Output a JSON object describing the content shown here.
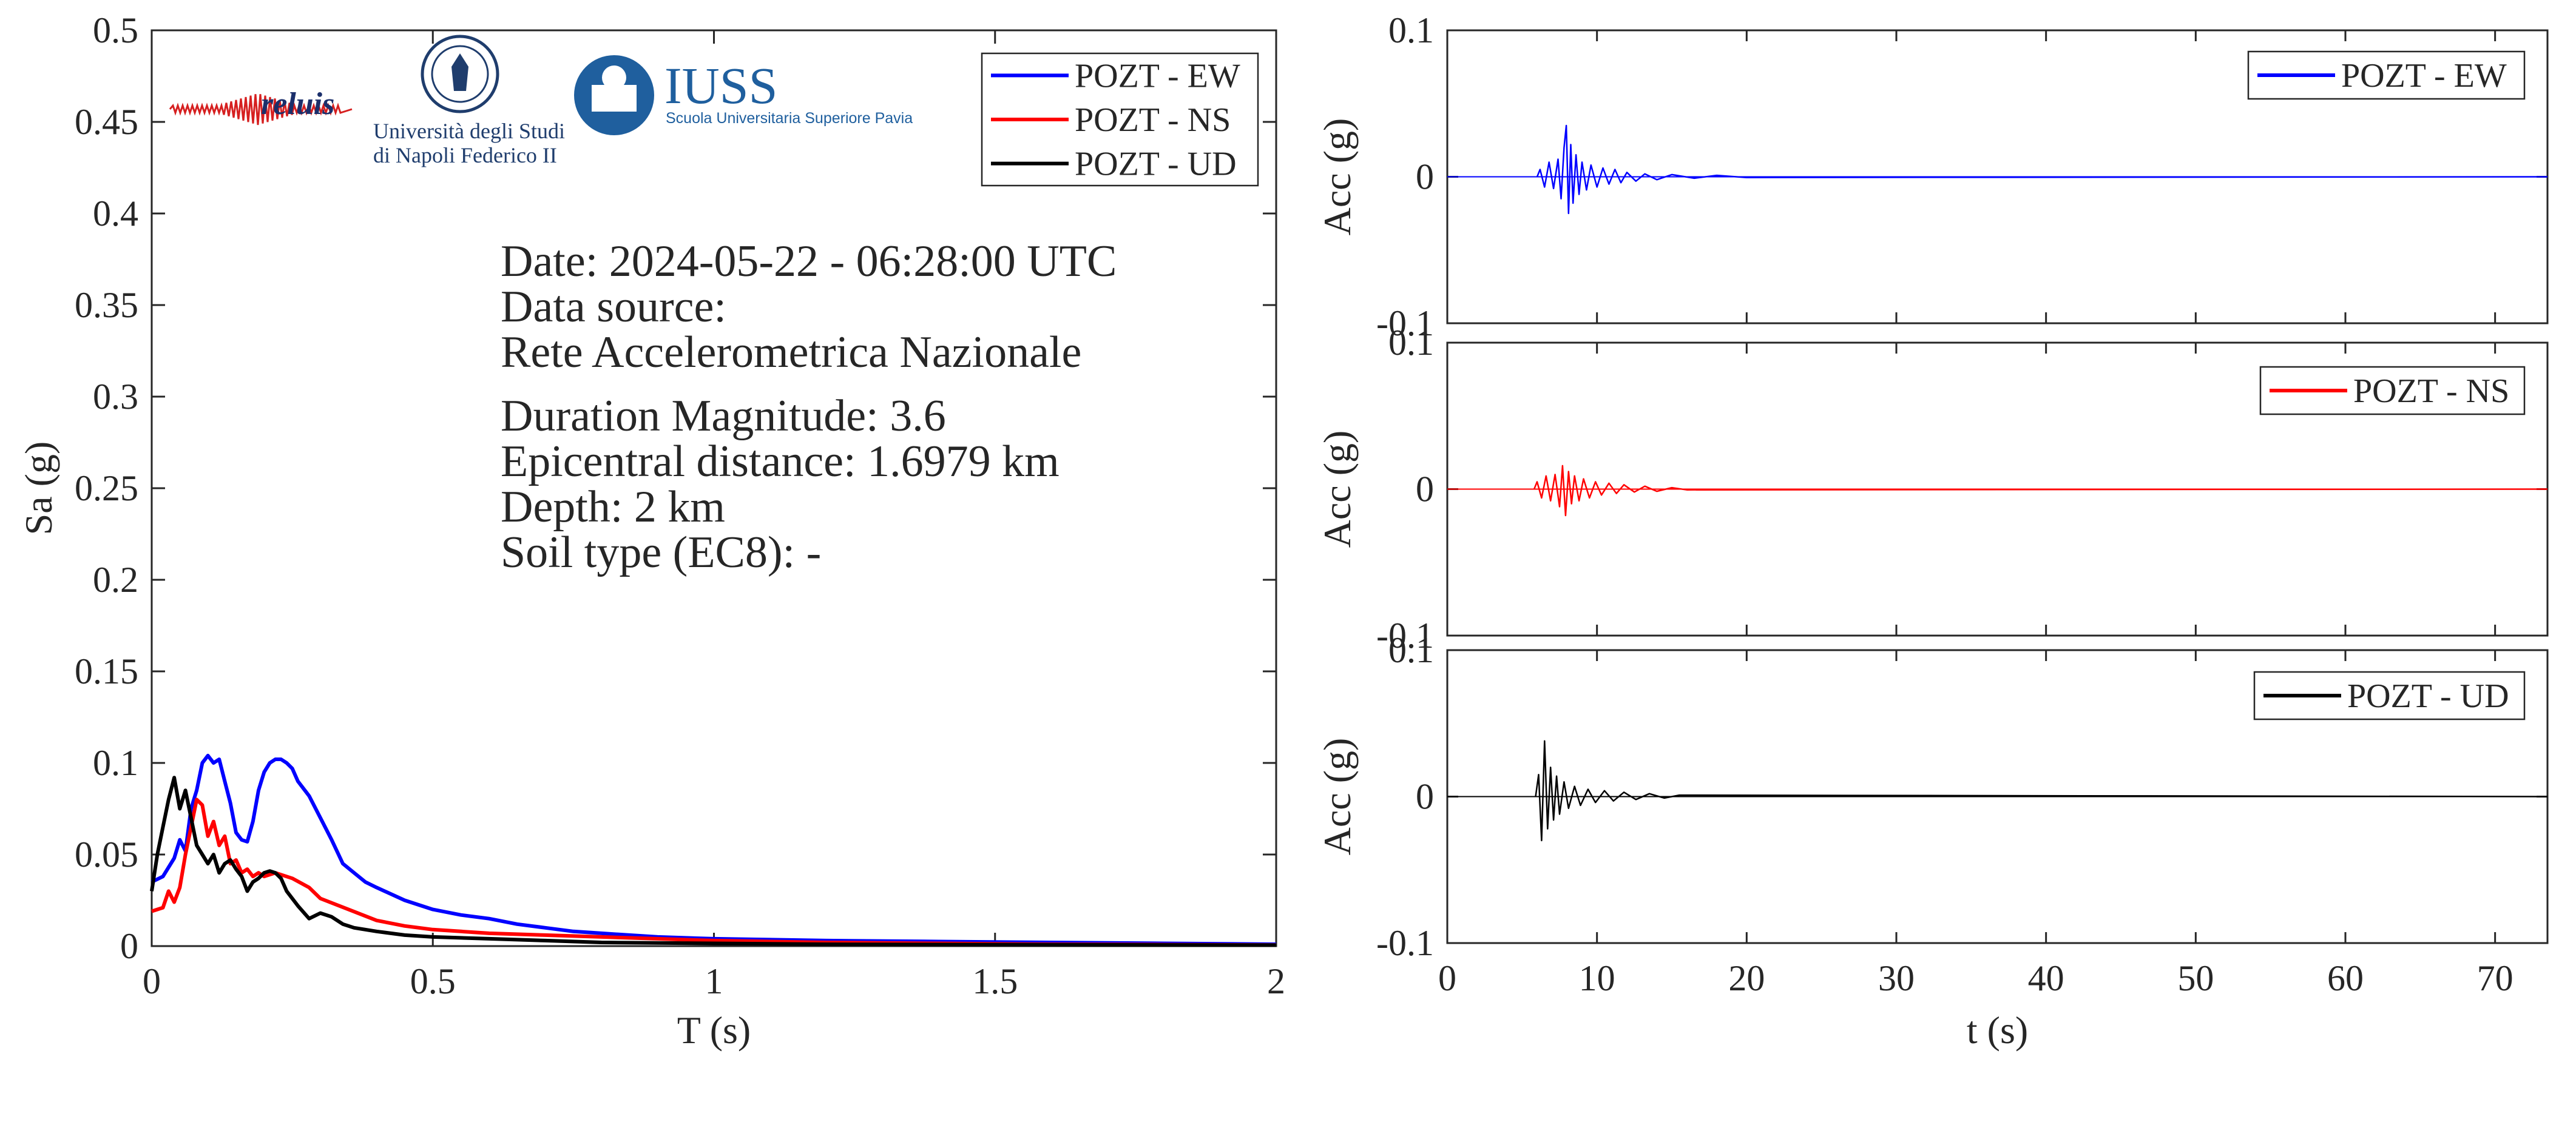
{
  "logos": [
    {
      "name": "reluis-logo",
      "text": "reluis"
    },
    {
      "name": "unina-logo",
      "lines": [
        "Università degli Studi",
        "di Napoli Federico II"
      ]
    },
    {
      "name": "iuss-logo",
      "lines": [
        "IUSS",
        "Scuola Universitaria Superiore Pavia"
      ]
    }
  ],
  "info": {
    "lines": [
      "Date: 2024-05-22 - 06:28:00 UTC",
      "Data source:",
      "Rete Accelerometrica Nazionale",
      "Duration Magnitude: 3.6",
      "Epicentral distance: 1.6979 km",
      "Depth: 2 km",
      "Soil type (EC8): -"
    ]
  },
  "colors": {
    "ew": "#0000ff",
    "ns": "#ff0000",
    "ud": "#000000",
    "axis": "#262626"
  },
  "chart_data": [
    {
      "type": "line",
      "id": "spectrum",
      "xlabel": "T (s)",
      "ylabel": "Sa (g)",
      "xlim": [
        0,
        2
      ],
      "ylim": [
        0,
        0.5
      ],
      "xticks": [
        "0",
        "0.5",
        "1",
        "1.5",
        "2"
      ],
      "yticks": [
        "0",
        "0.05",
        "0.1",
        "0.15",
        "0.2",
        "0.25",
        "0.3",
        "0.35",
        "0.4",
        "0.45",
        "0.5"
      ],
      "grid": false,
      "legend": "top-right",
      "series": [
        {
          "name": "POZT - EW",
          "color": "#0000ff",
          "x": [
            0,
            0.02,
            0.04,
            0.05,
            0.06,
            0.07,
            0.08,
            0.09,
            0.1,
            0.11,
            0.12,
            0.13,
            0.14,
            0.15,
            0.16,
            0.17,
            0.18,
            0.19,
            0.2,
            0.21,
            0.22,
            0.23,
            0.24,
            0.25,
            0.26,
            0.28,
            0.3,
            0.32,
            0.34,
            0.36,
            0.38,
            0.4,
            0.45,
            0.5,
            0.55,
            0.6,
            0.65,
            0.7,
            0.75,
            0.8,
            0.9,
            1.0,
            1.2,
            1.4,
            1.6,
            1.8,
            2.0
          ],
          "values": [
            0.035,
            0.038,
            0.048,
            0.058,
            0.052,
            0.075,
            0.085,
            0.1,
            0.104,
            0.1,
            0.102,
            0.09,
            0.078,
            0.062,
            0.058,
            0.057,
            0.068,
            0.085,
            0.095,
            0.1,
            0.102,
            0.102,
            0.1,
            0.097,
            0.09,
            0.082,
            0.07,
            0.058,
            0.045,
            0.04,
            0.035,
            0.032,
            0.025,
            0.02,
            0.017,
            0.015,
            0.012,
            0.01,
            0.008,
            0.007,
            0.005,
            0.004,
            0.003,
            0.0025,
            0.002,
            0.0015,
            0.001
          ]
        },
        {
          "name": "POZT - NS",
          "color": "#ff0000",
          "x": [
            0,
            0.02,
            0.03,
            0.04,
            0.05,
            0.06,
            0.07,
            0.08,
            0.09,
            0.1,
            0.11,
            0.12,
            0.13,
            0.14,
            0.15,
            0.16,
            0.17,
            0.18,
            0.19,
            0.2,
            0.22,
            0.25,
            0.28,
            0.3,
            0.35,
            0.4,
            0.45,
            0.5,
            0.55,
            0.6,
            0.7,
            0.8,
            0.9,
            1.0,
            1.2,
            1.4,
            1.6,
            1.8,
            2.0
          ],
          "values": [
            0.019,
            0.021,
            0.03,
            0.024,
            0.032,
            0.05,
            0.065,
            0.08,
            0.077,
            0.06,
            0.068,
            0.055,
            0.06,
            0.045,
            0.047,
            0.04,
            0.042,
            0.038,
            0.04,
            0.038,
            0.04,
            0.037,
            0.032,
            0.026,
            0.02,
            0.014,
            0.011,
            0.009,
            0.008,
            0.007,
            0.006,
            0.005,
            0.004,
            0.003,
            0.002,
            0.0015,
            0.001,
            0.0008,
            0.0006
          ]
        },
        {
          "name": "POZT - UD",
          "color": "#000000",
          "x": [
            0,
            0.01,
            0.02,
            0.03,
            0.04,
            0.05,
            0.06,
            0.07,
            0.08,
            0.09,
            0.1,
            0.11,
            0.12,
            0.13,
            0.14,
            0.15,
            0.16,
            0.17,
            0.18,
            0.19,
            0.2,
            0.21,
            0.22,
            0.23,
            0.24,
            0.26,
            0.28,
            0.3,
            0.32,
            0.34,
            0.36,
            0.38,
            0.4,
            0.45,
            0.5,
            0.6,
            0.7,
            0.8,
            1.0,
            1.2,
            1.5,
            2.0
          ],
          "values": [
            0.03,
            0.05,
            0.065,
            0.08,
            0.092,
            0.075,
            0.085,
            0.07,
            0.055,
            0.05,
            0.045,
            0.05,
            0.04,
            0.045,
            0.047,
            0.042,
            0.038,
            0.03,
            0.035,
            0.037,
            0.04,
            0.041,
            0.04,
            0.037,
            0.03,
            0.022,
            0.015,
            0.018,
            0.016,
            0.012,
            0.01,
            0.009,
            0.008,
            0.006,
            0.005,
            0.004,
            0.003,
            0.002,
            0.0015,
            0.001,
            0.0008,
            0.0005
          ]
        }
      ]
    },
    {
      "type": "line",
      "id": "acc-ew",
      "xlabel": "",
      "ylabel": "Acc (g)",
      "xlim": [
        0,
        73.5
      ],
      "ylim": [
        -0.1,
        0.1
      ],
      "xticks": [],
      "yticks": [
        "-0.1",
        "0",
        "0.1"
      ],
      "grid": false,
      "legend": "top-right",
      "series": [
        {
          "name": "POZT - EW",
          "color": "#0000ff",
          "x": [
            6.2,
            6.5,
            6.8,
            7.1,
            7.4,
            7.6,
            7.8,
            7.95,
            8.1,
            8.25,
            8.4,
            8.6,
            8.8,
            9.0,
            9.3,
            9.6,
            10.0,
            10.4,
            10.8,
            11.2,
            11.6,
            12.0,
            12.6,
            13.2,
            14.0,
            15.0,
            16.5,
            18.0,
            20.0
          ],
          "values": [
            0.005,
            -0.007,
            0.01,
            -0.008,
            0.012,
            -0.015,
            0.02,
            0.035,
            -0.025,
            0.022,
            -0.018,
            0.015,
            -0.012,
            0.01,
            -0.009,
            0.008,
            -0.007,
            0.006,
            -0.005,
            0.005,
            -0.004,
            0.003,
            -0.003,
            0.002,
            -0.002,
            0.0015,
            -0.001,
            0.001,
            -0.0005
          ]
        }
      ]
    },
    {
      "type": "line",
      "id": "acc-ns",
      "xlabel": "",
      "ylabel": "Acc (g)",
      "xlim": [
        0,
        73.5
      ],
      "ylim": [
        -0.1,
        0.1
      ],
      "xticks": [],
      "yticks": [
        "-0.1",
        "0",
        "0.1"
      ],
      "grid": false,
      "legend": "top-right",
      "series": [
        {
          "name": "POZT - NS",
          "color": "#ff0000",
          "x": [
            6.0,
            6.3,
            6.6,
            6.9,
            7.2,
            7.5,
            7.7,
            7.9,
            8.1,
            8.3,
            8.5,
            8.8,
            9.1,
            9.5,
            9.9,
            10.3,
            10.8,
            11.3,
            11.8,
            12.5,
            13.2,
            14.0,
            15.0,
            16.0
          ],
          "values": [
            0.005,
            -0.006,
            0.009,
            -0.008,
            0.01,
            -0.012,
            0.016,
            -0.018,
            0.012,
            -0.01,
            0.009,
            -0.008,
            0.007,
            -0.006,
            0.005,
            -0.004,
            0.004,
            -0.003,
            0.003,
            -0.002,
            0.002,
            -0.0015,
            0.001,
            -0.0005
          ]
        }
      ]
    },
    {
      "type": "line",
      "id": "acc-ud",
      "xlabel": "t (s)",
      "ylabel": "Acc (g)",
      "xlim": [
        0,
        73.5
      ],
      "ylim": [
        -0.1,
        0.1
      ],
      "xticks": [
        "0",
        "10",
        "20",
        "30",
        "40",
        "50",
        "60",
        "70"
      ],
      "yticks": [
        "-0.1",
        "0",
        "0.1"
      ],
      "grid": false,
      "legend": "top-right",
      "series": [
        {
          "name": "POZT - UD",
          "color": "#000000",
          "x": [
            6.1,
            6.3,
            6.5,
            6.7,
            6.9,
            7.1,
            7.3,
            7.5,
            7.8,
            8.1,
            8.5,
            8.9,
            9.4,
            9.9,
            10.5,
            11.1,
            11.8,
            12.6,
            13.5,
            14.5,
            15.5
          ],
          "values": [
            0.015,
            -0.03,
            0.038,
            -0.022,
            0.02,
            -0.016,
            0.014,
            -0.012,
            0.01,
            -0.008,
            0.007,
            -0.006,
            0.005,
            -0.004,
            0.004,
            -0.003,
            0.003,
            -0.002,
            0.002,
            -0.001,
            0.001
          ]
        }
      ]
    }
  ]
}
